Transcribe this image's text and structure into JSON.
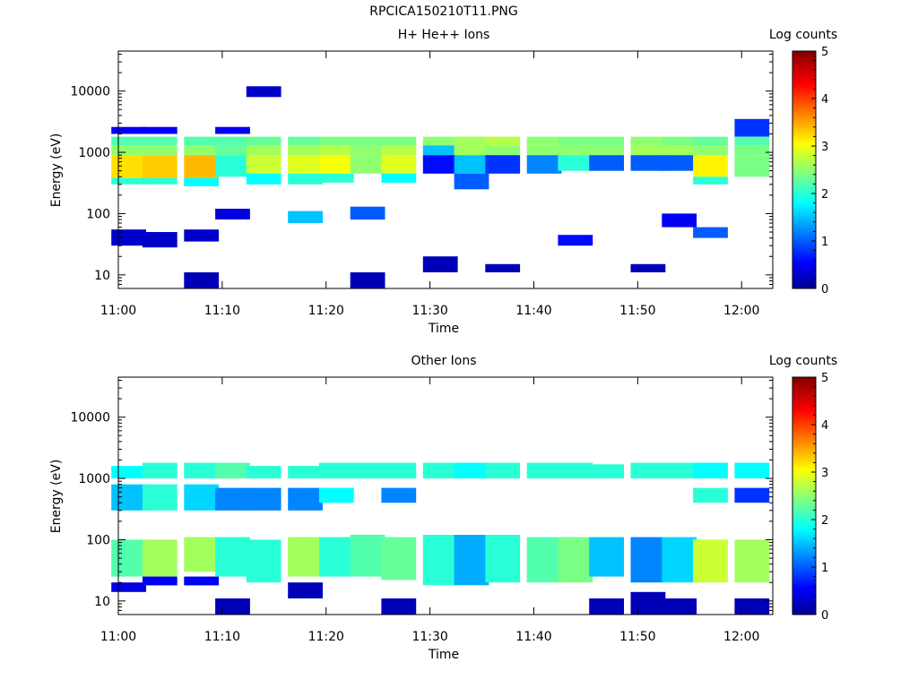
{
  "figure_title": "RPCICA150210T11.PNG",
  "chart_data": [
    {
      "type": "heatmap",
      "title": "H+ He++ Ions",
      "xlabel": "Time",
      "ylabel": "Energy (eV)",
      "x_ticks": [
        "11:00",
        "11:10",
        "11:20",
        "11:30",
        "11:40",
        "11:50",
        "12:00"
      ],
      "x_range": [
        "11:00",
        "12:03"
      ],
      "y_scale": "log",
      "y_ticks": [
        10,
        100,
        1000,
        10000
      ],
      "y_tick_labels": [
        "10",
        "100",
        "1000",
        "10000"
      ],
      "ylim": [
        6,
        45000
      ],
      "colorbar": {
        "label": "Log counts",
        "range": [
          0,
          5
        ],
        "ticks": [
          "0",
          "1",
          "2",
          "3",
          "4",
          "5"
        ]
      },
      "columns": [
        {
          "t": "11:01",
          "bands": [
            [
              1300,
              1800,
              2.2
            ],
            [
              900,
              1300,
              2.5
            ],
            [
              380,
              900,
              3.2
            ],
            [
              300,
              380,
              2.0
            ],
            [
              2000,
              2600,
              0.5
            ],
            [
              30,
              55,
              0.3
            ]
          ]
        },
        {
          "t": "11:04",
          "bands": [
            [
              1300,
              1800,
              2.2
            ],
            [
              900,
              1300,
              2.5
            ],
            [
              380,
              900,
              3.3
            ],
            [
              300,
              380,
              2.0
            ],
            [
              2000,
              2600,
              0.5
            ],
            [
              28,
              50,
              0.3
            ]
          ]
        },
        {
          "t": "11:08",
          "bands": [
            [
              1300,
              1800,
              2.2
            ],
            [
              900,
              1300,
              2.5
            ],
            [
              380,
              900,
              3.4
            ],
            [
              280,
              380,
              1.8
            ],
            [
              35,
              55,
              0.3
            ],
            [
              6,
              11,
              0.2
            ]
          ]
        },
        {
          "t": "11:11",
          "bands": [
            [
              1300,
              1800,
              2.2
            ],
            [
              900,
              1300,
              2.3
            ],
            [
              400,
              900,
              2.0
            ],
            [
              2000,
              2600,
              0.5
            ],
            [
              80,
              120,
              0.4
            ]
          ]
        },
        {
          "t": "11:14",
          "bands": [
            [
              1300,
              1800,
              2.3
            ],
            [
              900,
              1300,
              2.6
            ],
            [
              450,
              900,
              2.8
            ],
            [
              300,
              450,
              1.8
            ],
            [
              8000,
              12000,
              0.3
            ]
          ]
        },
        {
          "t": "11:18",
          "bands": [
            [
              1300,
              1800,
              2.3
            ],
            [
              900,
              1300,
              2.6
            ],
            [
              450,
              900,
              2.9
            ],
            [
              300,
              450,
              2.0
            ],
            [
              70,
              110,
              1.5
            ]
          ]
        },
        {
          "t": "11:21",
          "bands": [
            [
              1300,
              1800,
              2.4
            ],
            [
              900,
              1300,
              2.7
            ],
            [
              450,
              900,
              3.0
            ],
            [
              320,
              450,
              2.0
            ]
          ]
        },
        {
          "t": "11:24",
          "bands": [
            [
              1300,
              1800,
              2.4
            ],
            [
              900,
              1300,
              2.5
            ],
            [
              450,
              900,
              2.5
            ],
            [
              80,
              130,
              1.0
            ],
            [
              6,
              11,
              0.2
            ]
          ]
        },
        {
          "t": "11:27",
          "bands": [
            [
              1300,
              1800,
              2.4
            ],
            [
              900,
              1300,
              2.7
            ],
            [
              450,
              900,
              2.9
            ],
            [
              320,
              450,
              1.8
            ]
          ]
        },
        {
          "t": "11:31",
          "bands": [
            [
              1300,
              1800,
              2.5
            ],
            [
              900,
              1300,
              1.5
            ],
            [
              450,
              900,
              0.6
            ],
            [
              11,
              20,
              0.2
            ]
          ]
        },
        {
          "t": "11:34",
          "bands": [
            [
              1300,
              1800,
              2.6
            ],
            [
              900,
              1300,
              2.6
            ],
            [
              450,
              900,
              1.5
            ],
            [
              250,
              450,
              1.0
            ]
          ]
        },
        {
          "t": "11:37",
          "bands": [
            [
              1300,
              1800,
              2.7
            ],
            [
              900,
              1300,
              2.5
            ],
            [
              450,
              900,
              0.8
            ],
            [
              11,
              15,
              0.2
            ]
          ]
        },
        {
          "t": "11:41",
          "bands": [
            [
              1300,
              1800,
              2.5
            ],
            [
              900,
              1300,
              2.5
            ],
            [
              450,
              900,
              1.2
            ]
          ]
        },
        {
          "t": "11:44",
          "bands": [
            [
              1300,
              1800,
              2.4
            ],
            [
              900,
              1300,
              2.5
            ],
            [
              500,
              900,
              2.0
            ],
            [
              30,
              45,
              0.6
            ]
          ]
        },
        {
          "t": "11:47",
          "bands": [
            [
              1300,
              1800,
              2.4
            ],
            [
              900,
              1300,
              2.5
            ],
            [
              500,
              900,
              1.0
            ]
          ]
        },
        {
          "t": "11:51",
          "bands": [
            [
              1300,
              1800,
              2.5
            ],
            [
              900,
              1300,
              2.6
            ],
            [
              500,
              900,
              1.0
            ],
            [
              11,
              15,
              0.2
            ]
          ]
        },
        {
          "t": "11:54",
          "bands": [
            [
              1300,
              1800,
              2.4
            ],
            [
              900,
              1300,
              2.6
            ],
            [
              500,
              900,
              1.0
            ],
            [
              60,
              100,
              0.5
            ]
          ]
        },
        {
          "t": "11:57",
          "bands": [
            [
              1300,
              1800,
              2.3
            ],
            [
              900,
              1300,
              2.5
            ],
            [
              400,
              900,
              3.1
            ],
            [
              300,
              400,
              2.0
            ],
            [
              40,
              60,
              1.0
            ]
          ]
        },
        {
          "t": "12:01",
          "bands": [
            [
              1300,
              1800,
              2.2
            ],
            [
              900,
              1300,
              2.4
            ],
            [
              400,
              900,
              2.4
            ],
            [
              1800,
              3500,
              0.8
            ]
          ]
        }
      ]
    },
    {
      "type": "heatmap",
      "title": "Other Ions",
      "xlabel": "Time",
      "ylabel": "Energy (eV)",
      "x_ticks": [
        "11:00",
        "11:10",
        "11:20",
        "11:30",
        "11:40",
        "11:50",
        "12:00"
      ],
      "x_range": [
        "11:00",
        "12:03"
      ],
      "y_scale": "log",
      "y_ticks": [
        10,
        100,
        1000,
        10000
      ],
      "y_tick_labels": [
        "10",
        "100",
        "1000",
        "10000"
      ],
      "ylim": [
        6,
        45000
      ],
      "colorbar": {
        "label": "Log counts",
        "range": [
          0,
          5
        ],
        "ticks": [
          "0",
          "1",
          "2",
          "3",
          "4",
          "5"
        ]
      },
      "columns": [
        {
          "t": "11:01",
          "bands": [
            [
              1000,
              1600,
              1.8
            ],
            [
              300,
              800,
              1.5
            ],
            [
              25,
              100,
              2.2
            ],
            [
              14,
              20,
              0.4
            ]
          ]
        },
        {
          "t": "11:04",
          "bands": [
            [
              1000,
              1800,
              2.0
            ],
            [
              300,
              800,
              2.0
            ],
            [
              25,
              100,
              2.6
            ],
            [
              18,
              25,
              0.5
            ]
          ]
        },
        {
          "t": "11:08",
          "bands": [
            [
              1000,
              1800,
              2.0
            ],
            [
              300,
              800,
              1.6
            ],
            [
              30,
              110,
              2.6
            ],
            [
              18,
              25,
              0.5
            ]
          ]
        },
        {
          "t": "11:11",
          "bands": [
            [
              1000,
              1800,
              2.2
            ],
            [
              300,
              700,
              1.2
            ],
            [
              25,
              110,
              2.0
            ],
            [
              6,
              11,
              0.2
            ]
          ]
        },
        {
          "t": "11:14",
          "bands": [
            [
              1000,
              1600,
              2.0
            ],
            [
              300,
              700,
              1.2
            ],
            [
              20,
              100,
              2.0
            ]
          ]
        },
        {
          "t": "11:18",
          "bands": [
            [
              1000,
              1600,
              2.0
            ],
            [
              300,
              700,
              1.2
            ],
            [
              25,
              110,
              2.6
            ],
            [
              11,
              20,
              0.2
            ]
          ]
        },
        {
          "t": "11:21",
          "bands": [
            [
              1000,
              1800,
              2.0
            ],
            [
              400,
              700,
              1.8
            ],
            [
              25,
              110,
              2.0
            ]
          ]
        },
        {
          "t": "11:24",
          "bands": [
            [
              1000,
              1800,
              2.0
            ],
            [
              25,
              120,
              2.2
            ]
          ]
        },
        {
          "t": "11:27",
          "bands": [
            [
              1000,
              1800,
              2.0
            ],
            [
              400,
              700,
              1.2
            ],
            [
              22,
              110,
              2.3
            ],
            [
              6,
              11,
              0.2
            ]
          ]
        },
        {
          "t": "11:31",
          "bands": [
            [
              1000,
              1800,
              2.0
            ],
            [
              18,
              120,
              2.0
            ]
          ]
        },
        {
          "t": "11:34",
          "bands": [
            [
              1000,
              1800,
              1.8
            ],
            [
              18,
              120,
              1.4
            ]
          ]
        },
        {
          "t": "11:37",
          "bands": [
            [
              1000,
              1800,
              2.0
            ],
            [
              20,
              120,
              2.0
            ]
          ]
        },
        {
          "t": "11:41",
          "bands": [
            [
              1000,
              1800,
              2.0
            ],
            [
              20,
              110,
              2.2
            ]
          ]
        },
        {
          "t": "11:44",
          "bands": [
            [
              1000,
              1800,
              2.0
            ],
            [
              20,
              110,
              2.4
            ]
          ]
        },
        {
          "t": "11:47",
          "bands": [
            [
              1000,
              1700,
              2.0
            ],
            [
              25,
              110,
              1.5
            ],
            [
              6,
              11,
              0.2
            ]
          ]
        },
        {
          "t": "11:51",
          "bands": [
            [
              1000,
              1800,
              2.0
            ],
            [
              20,
              110,
              1.2
            ],
            [
              6,
              14,
              0.2
            ]
          ]
        },
        {
          "t": "11:54",
          "bands": [
            [
              1000,
              1800,
              2.0
            ],
            [
              20,
              110,
              1.6
            ],
            [
              6,
              11,
              0.2
            ]
          ]
        },
        {
          "t": "11:57",
          "bands": [
            [
              1000,
              1800,
              1.8
            ],
            [
              400,
              700,
              2.0
            ],
            [
              20,
              100,
              2.8
            ]
          ]
        },
        {
          "t": "12:01",
          "bands": [
            [
              1000,
              1800,
              1.8
            ],
            [
              400,
              700,
              0.8
            ],
            [
              20,
              100,
              2.6
            ],
            [
              6,
              11,
              0.2
            ]
          ]
        }
      ]
    }
  ]
}
